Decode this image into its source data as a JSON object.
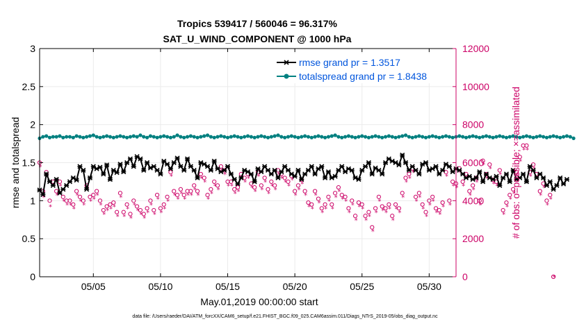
{
  "colors": {
    "rmse": "#000000",
    "spread": "#008080",
    "obs": "#cc0066",
    "grid": "#ebebeb",
    "legend_text": "#0055dd"
  },
  "chart_data": {
    "type": "line",
    "title_line1": "Tropics 539417 / 560046 = 96.317%",
    "title_line2": "SAT_U_WIND_COMPONENT @ 1000 hPa",
    "xlabel": "May.01,2019 00:00:00 start",
    "ylabel_left": "rmse and totalspread",
    "ylabel_right": "# of obs: o=possible; ×=assimilated",
    "footnote": "data file: /Users/raeder/DAI/ATM_forcXX/CAM6_setup/f.e21.FHIST_BGC.f09_025.CAM6assim.011/Diags_NTrS_2019-05/obs_diag_output.nc",
    "xlim": [
      1.0,
      32.0
    ],
    "ylim_left": [
      0,
      3
    ],
    "ylim_right": [
      0,
      12000
    ],
    "x_ticks": [
      5,
      10,
      15,
      20,
      25,
      30
    ],
    "x_tick_labels": [
      "05/05",
      "05/10",
      "05/15",
      "05/20",
      "05/25",
      "05/30"
    ],
    "y_ticks_left": [
      0,
      0.5,
      1,
      1.5,
      2,
      2.5,
      3
    ],
    "y_tick_labels_left": [
      "0",
      "0.5",
      "1",
      "1.5",
      "2",
      "2.5",
      "3"
    ],
    "y_ticks_right": [
      0,
      2000,
      4000,
      6000,
      8000,
      10000,
      12000
    ],
    "y_tick_labels_right": [
      "0",
      "2000",
      "4000",
      "6000",
      "8000",
      "10000",
      "12000"
    ],
    "legend": [
      {
        "label": "rmse grand pr = 1.3517",
        "series": "rmse"
      },
      {
        "label": "totalspread grand pr = 1.8438",
        "series": "spread"
      }
    ],
    "time_start": 1.0,
    "time_step": 0.25,
    "series": [
      {
        "name": "rmse",
        "values": [
          1.14,
          1.08,
          1.35,
          1.25,
          1.2,
          1.28,
          1.1,
          1.15,
          1.2,
          1.25,
          1.3,
          1.27,
          1.45,
          1.4,
          1.15,
          1.3,
          1.45,
          1.42,
          1.44,
          1.35,
          1.47,
          1.28,
          1.4,
          1.37,
          1.48,
          1.38,
          1.5,
          1.55,
          1.45,
          1.58,
          1.55,
          1.4,
          1.5,
          1.43,
          1.45,
          1.4,
          1.35,
          1.52,
          1.48,
          1.42,
          1.5,
          1.56,
          1.45,
          1.4,
          1.55,
          1.45,
          1.4,
          1.3,
          1.5,
          1.48,
          1.45,
          1.4,
          1.52,
          1.42,
          1.38,
          1.4,
          1.45,
          1.35,
          1.28,
          1.22,
          1.3,
          1.4,
          1.38,
          1.35,
          1.25,
          1.42,
          1.38,
          1.45,
          1.4,
          1.35,
          1.4,
          1.3,
          1.38,
          1.45,
          1.4,
          1.35,
          1.32,
          1.4,
          1.28,
          1.35,
          1.4,
          1.45,
          1.35,
          1.42,
          1.45,
          1.3,
          1.38,
          1.3,
          1.32,
          1.4,
          1.45,
          1.38,
          1.42,
          1.4,
          1.3,
          1.28,
          1.4,
          1.45,
          1.5,
          1.35,
          1.43,
          1.4,
          1.35,
          1.5,
          1.55,
          1.52,
          1.5,
          1.47,
          1.6,
          1.5,
          1.4,
          1.45,
          1.4,
          1.35,
          1.48,
          1.5,
          1.4,
          1.42,
          1.45,
          1.35,
          1.4,
          1.48,
          1.45,
          1.38,
          1.42,
          1.4,
          1.35,
          1.3,
          1.32,
          1.28,
          1.3,
          1.38,
          1.25,
          1.35,
          1.3,
          1.28,
          1.32,
          1.2,
          1.3,
          1.35,
          1.25,
          1.4,
          1.28,
          1.3,
          1.35,
          1.25,
          1.45,
          1.4,
          1.3,
          1.35,
          1.3,
          1.2,
          1.25,
          1.15,
          1.2,
          1.3,
          1.22,
          1.28
        ]
      },
      {
        "name": "totalspread",
        "values": [
          1.82,
          1.84,
          1.85,
          1.83,
          1.84,
          1.84,
          1.85,
          1.83,
          1.84,
          1.84,
          1.83,
          1.85,
          1.84,
          1.83,
          1.84,
          1.85,
          1.86,
          1.84,
          1.83,
          1.84,
          1.85,
          1.84,
          1.83,
          1.84,
          1.85,
          1.84,
          1.83,
          1.84,
          1.85,
          1.84,
          1.86,
          1.84,
          1.83,
          1.85,
          1.84,
          1.83,
          1.84,
          1.85,
          1.84,
          1.83,
          1.84,
          1.86,
          1.84,
          1.83,
          1.84,
          1.85,
          1.84,
          1.83,
          1.84,
          1.85,
          1.86,
          1.84,
          1.83,
          1.84,
          1.85,
          1.84,
          1.83,
          1.84,
          1.85,
          1.84,
          1.83,
          1.84,
          1.85,
          1.84,
          1.83,
          1.84,
          1.85,
          1.84,
          1.83,
          1.84,
          1.85,
          1.86,
          1.84,
          1.83,
          1.84,
          1.85,
          1.84,
          1.83,
          1.84,
          1.85,
          1.84,
          1.83,
          1.84,
          1.85,
          1.84,
          1.83,
          1.84,
          1.85,
          1.86,
          1.84,
          1.83,
          1.84,
          1.85,
          1.84,
          1.83,
          1.84,
          1.85,
          1.84,
          1.83,
          1.84,
          1.85,
          1.84,
          1.83,
          1.84,
          1.85,
          1.84,
          1.83,
          1.84,
          1.85,
          1.86,
          1.84,
          1.83,
          1.84,
          1.85,
          1.84,
          1.83,
          1.84,
          1.85,
          1.84,
          1.83,
          1.84,
          1.85,
          1.84,
          1.83,
          1.84,
          1.85,
          1.84,
          1.83,
          1.84,
          1.85,
          1.84,
          1.83,
          1.84,
          1.85,
          1.84,
          1.83,
          1.84,
          1.85,
          1.84,
          1.83,
          1.84,
          1.85,
          1.84,
          1.83,
          1.84,
          1.85,
          1.84,
          1.83,
          1.84,
          1.85,
          1.84,
          1.83,
          1.84,
          1.85,
          1.84,
          1.83,
          1.84,
          1.85,
          1.84,
          1.82
        ]
      },
      {
        "name": "obs_possible",
        "values": [
          6000,
          4500,
          5500,
          4000,
          5000,
          4500,
          5000,
          4200,
          4000,
          4000,
          3800,
          4500,
          4200,
          4000,
          4800,
          4200,
          4300,
          4500,
          4000,
          3500,
          3700,
          3800,
          3900,
          3400,
          4400,
          3400,
          3800,
          3300,
          4000,
          3700,
          3500,
          3300,
          3600,
          4000,
          3500,
          4300,
          3600,
          3800,
          4200,
          5500,
          4500,
          4300,
          4600,
          4300,
          4500,
          4500,
          4800,
          4500,
          5400,
          5200,
          4300,
          4600,
          5000,
          4800,
          5800,
          5600,
          5000,
          5000,
          4600,
          4700,
          5400,
          5200,
          5400,
          4900,
          4700,
          5500,
          4800,
          5200,
          4600,
          5000,
          4800,
          5600,
          5400,
          5200,
          5000,
          5300,
          4500,
          4800,
          5100,
          4500,
          3900,
          3800,
          4500,
          4100,
          3600,
          3800,
          4200,
          3800,
          4400,
          4700,
          4300,
          4200,
          3600,
          4000,
          3200,
          3900,
          3800,
          3200,
          3400,
          2600,
          3600,
          4200,
          3700,
          3600,
          3800,
          3200,
          3800,
          3600,
          4400,
          5200,
          5400,
          5700,
          4200,
          4400,
          3800,
          3400,
          4000,
          4200,
          3600,
          3500,
          3900,
          5500,
          4000,
          5000,
          4900,
          5700,
          5000,
          5400,
          4500,
          4800,
          5200,
          4000,
          6100,
          5400,
          5900,
          5100,
          5000,
          5600,
          3500,
          3900,
          4300,
          4600,
          5500,
          6300,
          6900,
          6900,
          5500,
          5900,
          5400,
          4500,
          4900,
          4000,
          4300,
          0
        ]
      },
      {
        "name": "obs_assimilated",
        "values": [
          5800,
          4200,
          5300,
          3700,
          4800,
          4300,
          4800,
          4000,
          3800,
          3800,
          3600,
          4300,
          4000,
          3800,
          4600,
          4000,
          4100,
          4300,
          3800,
          3300,
          3500,
          3600,
          3700,
          3200,
          4200,
          3200,
          3600,
          3100,
          3800,
          3500,
          3300,
          3100,
          3400,
          3800,
          3300,
          4100,
          3400,
          3600,
          4000,
          5300,
          4300,
          4100,
          4400,
          4100,
          4300,
          4300,
          4600,
          4300,
          5200,
          5000,
          4100,
          4400,
          4800,
          4600,
          5600,
          5400,
          4800,
          4800,
          4400,
          4500,
          5200,
          5000,
          5200,
          4700,
          4500,
          5300,
          4600,
          5000,
          4400,
          4800,
          4600,
          5400,
          5200,
          5000,
          4800,
          5100,
          4300,
          4600,
          4900,
          4300,
          3700,
          3600,
          4300,
          3900,
          3400,
          3600,
          4000,
          3600,
          4200,
          4500,
          4100,
          4000,
          3400,
          3800,
          3000,
          3700,
          3600,
          3000,
          3200,
          2400,
          3400,
          4000,
          3500,
          3400,
          3600,
          3000,
          3600,
          3400,
          4200,
          5000,
          5200,
          5500,
          4000,
          4200,
          3600,
          3200,
          3800,
          4000,
          3400,
          3300,
          3700,
          5300,
          3800,
          4800,
          4700,
          5500,
          4800,
          5200,
          4300,
          4600,
          5000,
          3800,
          5900,
          5200,
          5700,
          4900,
          4800,
          5400,
          3300,
          3700,
          4100,
          4400,
          5300,
          6100,
          6700,
          6700,
          5300,
          5700,
          5200,
          4300,
          4700,
          3800,
          4100,
          0
        ]
      }
    ]
  }
}
